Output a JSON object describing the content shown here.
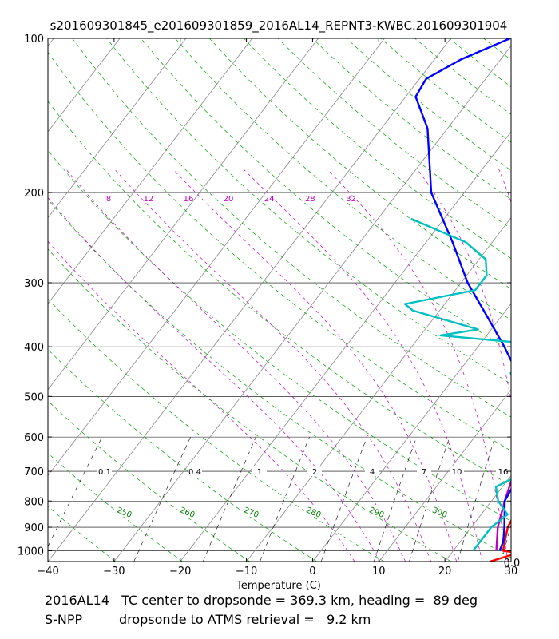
{
  "chart_data": {
    "type": "line",
    "subtype": "skew-T log-P diagram",
    "title": "s201609301845_e201609301859_2016AL14_REPNT3-KWBC.201609301904",
    "xlabel": "Temperature (C)",
    "ylabel": "",
    "xlim": [
      -40,
      30
    ],
    "ylim_pressure_hpa": [
      1050,
      100
    ],
    "x_ticks": [
      -40,
      -30,
      -20,
      -10,
      0,
      10,
      20,
      30
    ],
    "y_ticks": [
      100,
      200,
      300,
      400,
      500,
      600,
      700,
      800,
      900,
      1000
    ],
    "isotherm_labels": [
      {
        "t": 8,
        "p": 202
      },
      {
        "t": 12,
        "p": 202
      },
      {
        "t": 16,
        "p": 202
      },
      {
        "t": 20,
        "p": 202
      },
      {
        "t": 24,
        "p": 202
      },
      {
        "t": 28,
        "p": 202
      },
      {
        "t": 32,
        "p": 202
      }
    ],
    "mixing_ratio_labels": [
      {
        "text": "0.1",
        "t": -31,
        "p": 700
      },
      {
        "text": "0.4",
        "t": -17,
        "p": 700
      },
      {
        "text": "1",
        "t": -8,
        "p": 700
      },
      {
        "text": "2",
        "t": 0,
        "p": 700
      },
      {
        "text": "4",
        "t": 9,
        "p": 700
      },
      {
        "text": "7",
        "t": 17,
        "p": 700
      },
      {
        "text": "10",
        "t": 22,
        "p": 700
      },
      {
        "text": "16",
        "t": 29,
        "p": 700
      }
    ],
    "dry_adiabat_labels": [
      {
        "text": "250",
        "t": -30,
        "p": 840
      },
      {
        "text": "260",
        "t": -20,
        "p": 840
      },
      {
        "text": "270",
        "t": -11,
        "p": 840
      },
      {
        "text": "280",
        "t": -1,
        "p": 840
      },
      {
        "text": "290",
        "t": 8.5,
        "p": 840
      },
      {
        "text": "300",
        "t": 18,
        "p": 840
      }
    ],
    "corner_label": "0.0",
    "series": [
      {
        "name": "temperature",
        "color": "#ff0000",
        "points": [
          [
            26.8,
            1050
          ],
          [
            30,
            1010
          ],
          [
            27.5,
            1000
          ],
          [
            25.5,
            900
          ],
          [
            24.5,
            800
          ],
          [
            22.5,
            700
          ],
          [
            20,
            600
          ],
          [
            17,
            500
          ],
          [
            14,
            400
          ],
          [
            11,
            340
          ],
          [
            6,
            300
          ],
          [
            -11,
            200
          ],
          [
            -16,
            150
          ],
          [
            -15.5,
            130
          ],
          [
            -12,
            110
          ],
          [
            -5,
            100
          ]
        ]
      },
      {
        "name": "atms-retrieval-temperature",
        "color": "#c000c0",
        "points": [
          [
            26.5,
            1000
          ],
          [
            24,
            900
          ],
          [
            22,
            800
          ],
          [
            20,
            700
          ],
          [
            18,
            600
          ],
          [
            16,
            500
          ],
          [
            12,
            400
          ],
          [
            6.5,
            310
          ],
          [
            5,
            290
          ],
          [
            -3,
            200
          ],
          [
            -7,
            170
          ]
        ]
      },
      {
        "name": "dewpoint",
        "color": "#0000ff",
        "points": [
          [
            27,
            1000
          ],
          [
            26.5,
            960
          ],
          [
            25,
            900
          ],
          [
            22,
            800
          ],
          [
            21,
            700
          ],
          [
            19.5,
            600
          ],
          [
            18,
            550
          ],
          [
            14,
            500
          ],
          [
            9,
            450
          ],
          [
            4,
            400
          ],
          [
            -2,
            350
          ],
          [
            -9,
            300
          ],
          [
            -16,
            250
          ],
          [
            -25,
            200
          ],
          [
            -33,
            150
          ],
          [
            -38.5,
            130
          ],
          [
            -39,
            120
          ],
          [
            -36,
            110
          ],
          [
            -31,
            100
          ]
        ]
      },
      {
        "name": "atms-retrieval-dewpoint",
        "color": "#00c0c0",
        "points": [
          [
            23,
            1000
          ],
          [
            23,
            900
          ],
          [
            24,
            850
          ],
          [
            21,
            800
          ],
          [
            19,
            750
          ],
          [
            22,
            700
          ],
          [
            20,
            600
          ],
          [
            15,
            550
          ],
          [
            12,
            500
          ],
          [
            8,
            450
          ],
          [
            13,
            400
          ],
          [
            -7,
            380
          ],
          [
            -2,
            370
          ],
          [
            -14,
            340
          ],
          [
            -16,
            330
          ],
          [
            -7,
            310
          ],
          [
            -7,
            290
          ],
          [
            -9,
            270
          ],
          [
            -14,
            250
          ],
          [
            -25,
            225
          ]
        ]
      }
    ]
  },
  "footer": {
    "line1": "2016AL14   TC center to dropsonde = 369.3 km, heading =  89 deg",
    "line2": "S-NPP         dropsonde to ATMS retrieval =   9.2 km"
  }
}
